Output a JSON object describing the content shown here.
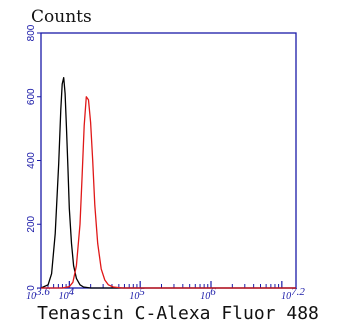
{
  "chart_data": {
    "type": "line",
    "ylabel": "Counts",
    "xlabel": "Tenascin C-Alexa Fluor 488",
    "x_scale": "log10",
    "xlim": [
      3.6,
      7.2
    ],
    "ylim": [
      0,
      800
    ],
    "yticks": [
      {
        "value": 0,
        "label": "0"
      },
      {
        "value": 200,
        "label": "200"
      },
      {
        "value": 400,
        "label": "400"
      },
      {
        "value": 600,
        "label": "600"
      },
      {
        "value": 800,
        "label": "800"
      }
    ],
    "xticks": [
      {
        "value": 3.6,
        "base": "10",
        "exp": "3.6"
      },
      {
        "value": 4,
        "base": "10",
        "exp": "4"
      },
      {
        "value": 5,
        "base": "10",
        "exp": "5"
      },
      {
        "value": 6,
        "base": "10",
        "exp": "6"
      },
      {
        "value": 7.2,
        "base": "10",
        "exp": "7.2"
      }
    ],
    "grid": false,
    "series": [
      {
        "color": "#000000",
        "x": [
          3.6,
          3.7,
          3.75,
          3.8,
          3.85,
          3.88,
          3.9,
          3.92,
          3.94,
          3.96,
          3.98,
          4.0,
          4.03,
          4.06,
          4.1,
          4.15,
          4.2,
          4.3,
          4.5,
          7.2
        ],
        "y": [
          0,
          10,
          45,
          170,
          390,
          560,
          640,
          660,
          610,
          500,
          380,
          250,
          140,
          70,
          30,
          10,
          3,
          0,
          0,
          0
        ]
      },
      {
        "color": "#e01818",
        "x": [
          3.6,
          3.9,
          4.0,
          4.05,
          4.1,
          4.15,
          4.18,
          4.21,
          4.24,
          4.27,
          4.3,
          4.33,
          4.36,
          4.4,
          4.45,
          4.5,
          4.55,
          4.62,
          4.75,
          7.2
        ],
        "y": [
          0,
          0,
          4,
          18,
          70,
          200,
          350,
          510,
          600,
          590,
          520,
          400,
          260,
          140,
          60,
          25,
          10,
          3,
          0,
          0
        ]
      }
    ]
  }
}
